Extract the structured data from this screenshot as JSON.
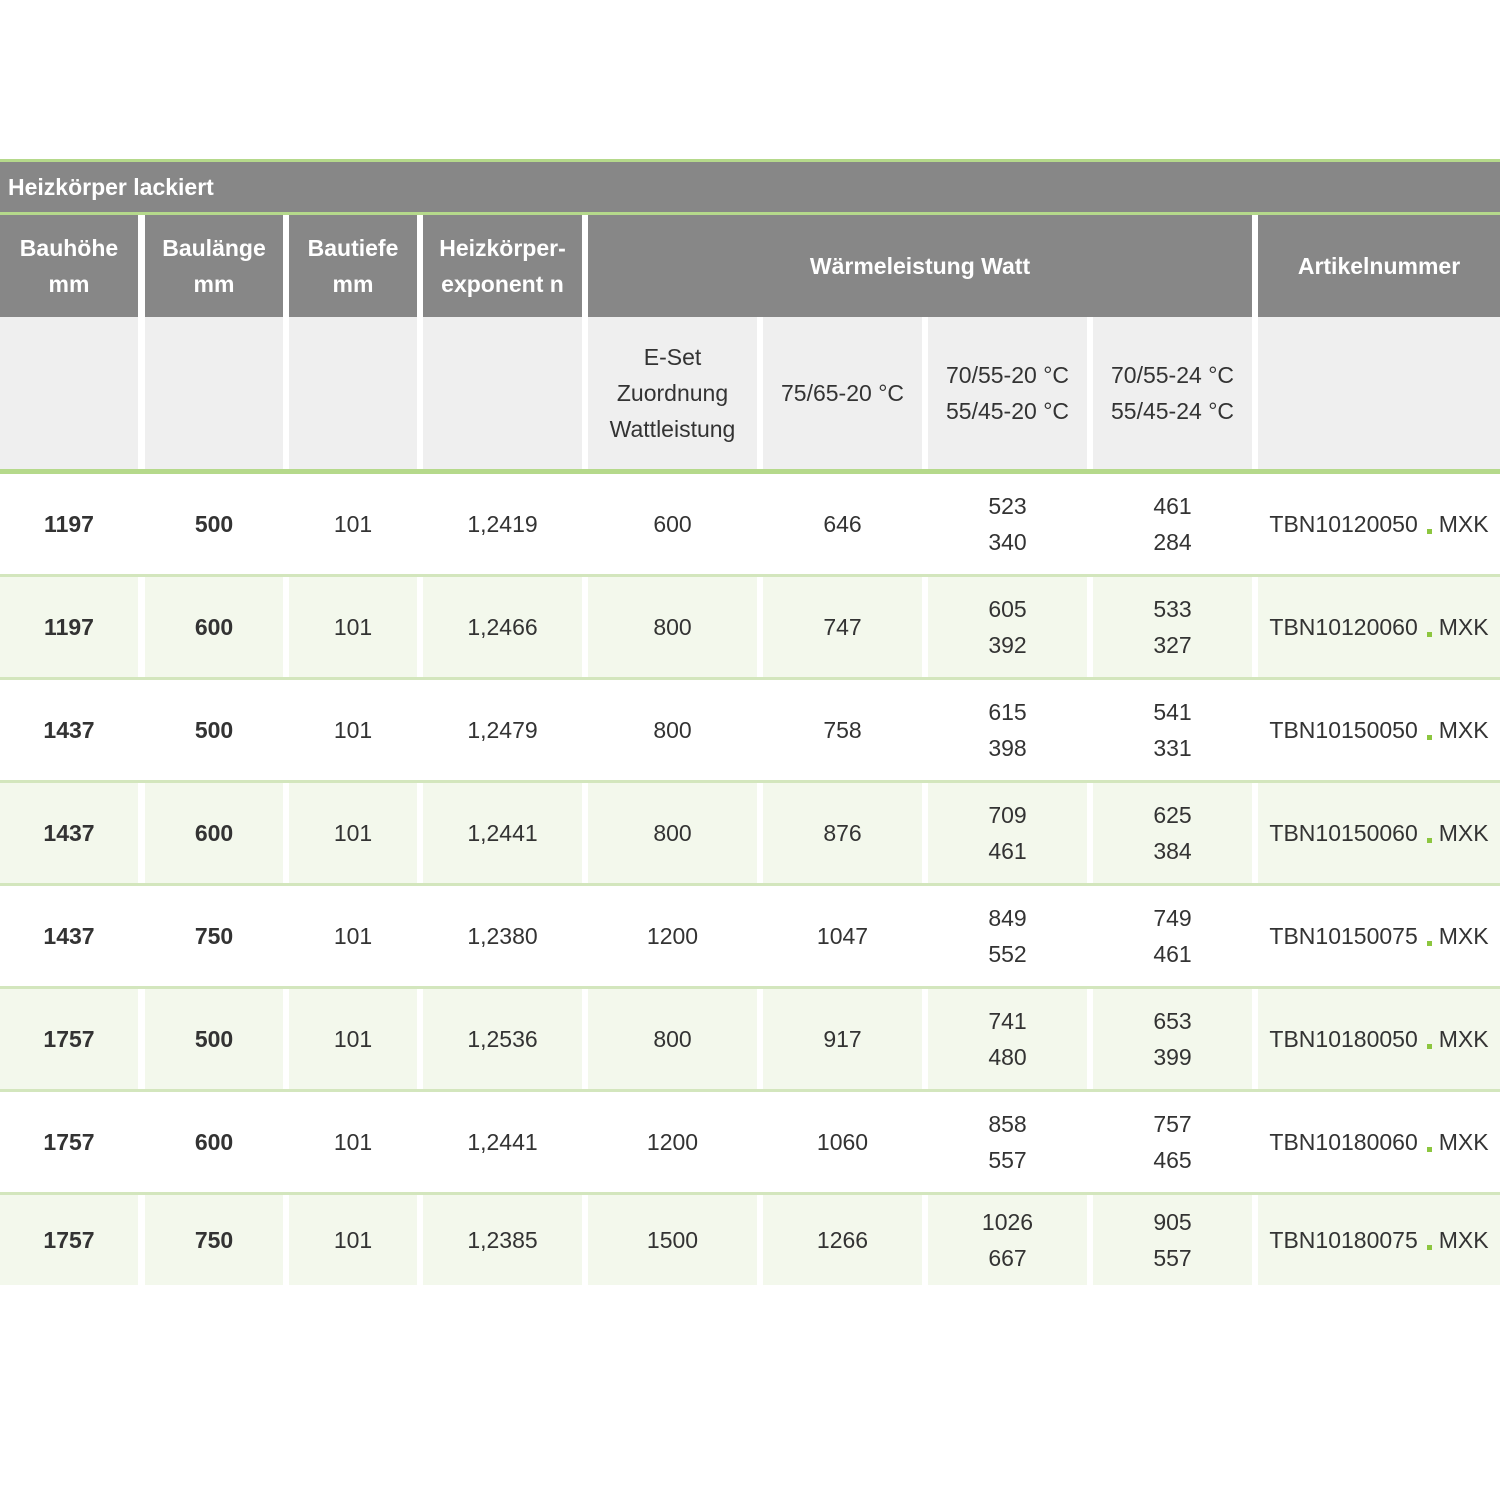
{
  "title": "Heizkörper lackiert",
  "header": {
    "columns": [
      [
        "Bauhöhe",
        "mm"
      ],
      [
        "Baulänge",
        "mm"
      ],
      [
        "Bautiefe",
        "mm"
      ],
      [
        "Heizkörper-",
        "exponent n"
      ]
    ],
    "group": "Wärmeleistung Watt",
    "article": "Artikelnummer",
    "subcolumns": [
      [
        "E-Set",
        "Zuordnung",
        "Wattleistung"
      ],
      [
        "75/65-20 °C"
      ],
      [
        "70/55-20 °C",
        "55/45-20 °C"
      ],
      [
        "70/55-24 °C",
        "55/45-24 °C"
      ]
    ]
  },
  "rows": [
    [
      "1197",
      "500",
      "101",
      "1,2419",
      "600",
      "646",
      [
        "523",
        "340"
      ],
      [
        "461",
        "284"
      ],
      [
        "TBN10120050",
        "MXK"
      ]
    ],
    [
      "1197",
      "600",
      "101",
      "1,2466",
      "800",
      "747",
      [
        "605",
        "392"
      ],
      [
        "533",
        "327"
      ],
      [
        "TBN10120060",
        "MXK"
      ]
    ],
    [
      "1437",
      "500",
      "101",
      "1,2479",
      "800",
      "758",
      [
        "615",
        "398"
      ],
      [
        "541",
        "331"
      ],
      [
        "TBN10150050",
        "MXK"
      ]
    ],
    [
      "1437",
      "600",
      "101",
      "1,2441",
      "800",
      "876",
      [
        "709",
        "461"
      ],
      [
        "625",
        "384"
      ],
      [
        "TBN10150060",
        "MXK"
      ]
    ],
    [
      "1437",
      "750",
      "101",
      "1,2380",
      "1200",
      "1047",
      [
        "849",
        "552"
      ],
      [
        "749",
        "461"
      ],
      [
        "TBN10150075",
        "MXK"
      ]
    ],
    [
      "1757",
      "500",
      "101",
      "1,2536",
      "800",
      "917",
      [
        "741",
        "480"
      ],
      [
        "653",
        "399"
      ],
      [
        "TBN10180050",
        "MXK"
      ]
    ],
    [
      "1757",
      "600",
      "101",
      "1,2441",
      "1200",
      "1060",
      [
        "858",
        "557"
      ],
      [
        "757",
        "465"
      ],
      [
        "TBN10180060",
        "MXK"
      ]
    ],
    [
      "1757",
      "750",
      "101",
      "1,2385",
      "1500",
      "1266",
      [
        "1026",
        "667"
      ],
      [
        "905",
        "557"
      ],
      [
        "TBN10180075",
        "MXK"
      ]
    ]
  ]
}
